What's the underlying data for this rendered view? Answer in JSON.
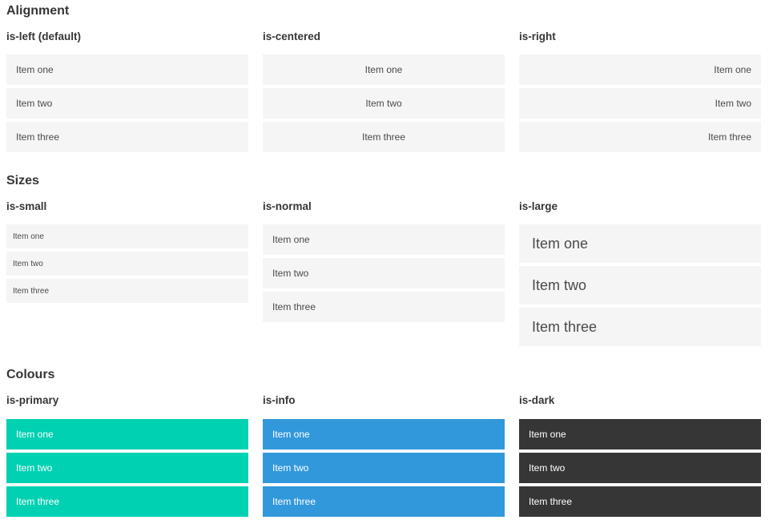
{
  "colors": {
    "item_bg": "#f5f5f5",
    "item_text": "#4a4a4a",
    "heading_text": "#363636",
    "primary": "#00d1b2",
    "info": "#3298dc",
    "dark": "#363636",
    "light_text": "#ffffff"
  },
  "sections": [
    {
      "title": "Alignment",
      "columns": [
        {
          "label": "is-left (default)",
          "items": [
            "Item one",
            "Item two",
            "Item three"
          ]
        },
        {
          "label": "is-centered",
          "items": [
            "Item one",
            "Item two",
            "Item three"
          ]
        },
        {
          "label": "is-right",
          "items": [
            "Item one",
            "Item two",
            "Item three"
          ]
        }
      ]
    },
    {
      "title": "Sizes",
      "columns": [
        {
          "label": "is-small",
          "items": [
            "Item one",
            "Item two",
            "Item three"
          ]
        },
        {
          "label": "is-normal",
          "items": [
            "Item one",
            "Item two",
            "Item three"
          ]
        },
        {
          "label": "is-large",
          "items": [
            "Item one",
            "Item two",
            "Item three"
          ]
        }
      ]
    },
    {
      "title": "Colours",
      "columns": [
        {
          "label": "is-primary",
          "items": [
            "Item one",
            "Item two",
            "Item three"
          ]
        },
        {
          "label": "is-info",
          "items": [
            "Item one",
            "Item two",
            "Item three"
          ]
        },
        {
          "label": "is-dark",
          "items": [
            "Item one",
            "Item two",
            "Item three"
          ]
        }
      ]
    }
  ]
}
